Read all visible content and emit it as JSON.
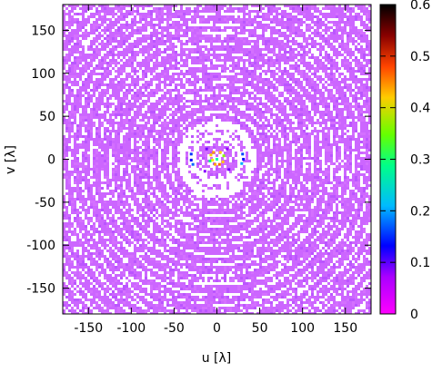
{
  "chart_data": {
    "type": "heatmap",
    "title": "",
    "xlabel": "u [λ]",
    "ylabel": "v [λ]",
    "xlim": [
      -180,
      180
    ],
    "ylim": [
      -180,
      180
    ],
    "xticks": [
      "-150",
      "-100",
      "-50",
      "0",
      "50",
      "100",
      "150"
    ],
    "xtick_values": [
      -150,
      -100,
      -50,
      0,
      50,
      100,
      150
    ],
    "yticks": [
      "-150",
      "-100",
      "-50",
      "0",
      "50",
      "100",
      "150"
    ],
    "ytick_values": [
      -150,
      -100,
      -50,
      0,
      50,
      100,
      150
    ],
    "colorbar": {
      "range": [
        0,
        0.6
      ],
      "ticks": [
        "0",
        "0.1",
        "0.2",
        "0.3",
        "0.4",
        "0.5",
        "0.6"
      ],
      "tick_values": [
        0,
        0.1,
        0.2,
        0.3,
        0.4,
        0.5,
        0.6
      ],
      "palette": [
        "#ff00ff",
        "#9900ff",
        "#0000ff",
        "#00aaff",
        "#00ffaa",
        "#00ff00",
        "#ffff00",
        "#ff9900",
        "#ff0000",
        "#550000",
        "#000000"
      ]
    },
    "grid": false,
    "legend": "none",
    "background_color": "#cc66ff",
    "description_values": {
      "dominant_value": 0.0,
      "inner_ring_radius": 30,
      "center_gap_radius": 25,
      "ring_spacing": 11
    }
  }
}
